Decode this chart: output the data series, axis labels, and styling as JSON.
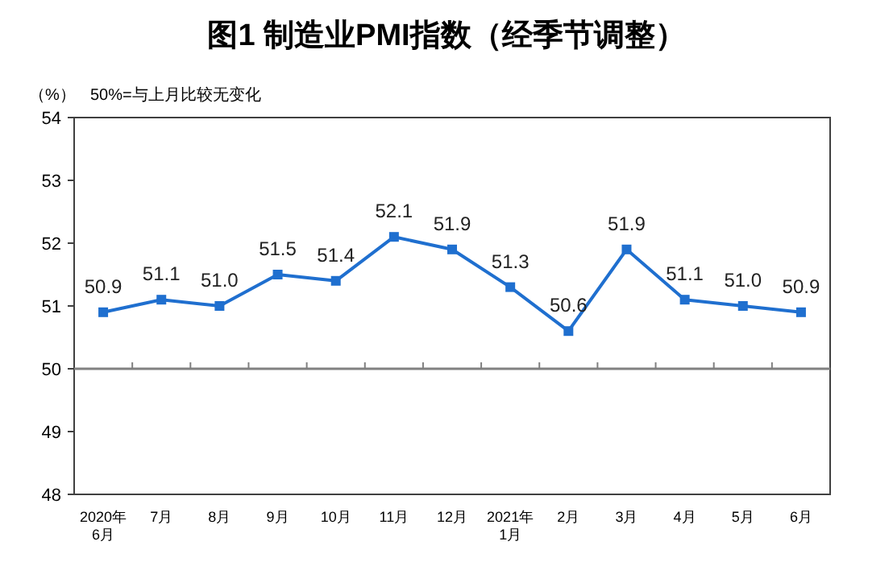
{
  "chart_data": {
    "type": "line",
    "title": "图1 制造业PMI指数（经季节调整）",
    "ylabel": "（%）",
    "annotations": [
      "50%=与上月比较无变化"
    ],
    "categories": [
      "2020年\n6月",
      "7月",
      "8月",
      "9月",
      "10月",
      "11月",
      "12月",
      "2021年\n1月",
      "2月",
      "3月",
      "4月",
      "5月",
      "6月"
    ],
    "series": [
      {
        "color": "#1f6fcf",
        "values": [
          50.9,
          51.1,
          51.0,
          51.5,
          51.4,
          52.1,
          51.9,
          51.3,
          50.6,
          51.9,
          51.1,
          51.0,
          50.9
        ],
        "value_labels": [
          "50.9",
          "51.1",
          "51.0",
          "51.5",
          "51.4",
          "52.1",
          "51.9",
          "51.3",
          "50.6",
          "51.9",
          "51.1",
          "51.0",
          "50.9"
        ]
      }
    ],
    "ylim": [
      48,
      54
    ],
    "yticks": [
      48,
      49,
      50,
      51,
      52,
      53,
      54
    ],
    "ref_lines": [
      {
        "axis": "y",
        "value": 50,
        "color": "#808080"
      }
    ],
    "marker": "square",
    "line_style": "solid"
  }
}
